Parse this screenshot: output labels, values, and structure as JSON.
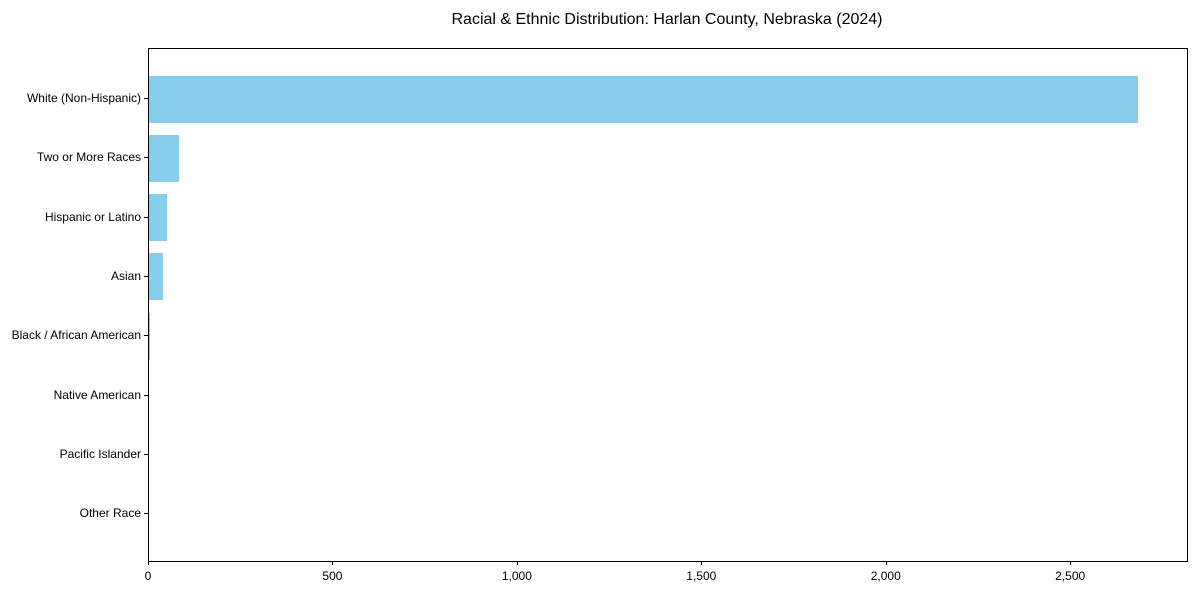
{
  "chart_data": {
    "type": "bar",
    "orientation": "horizontal",
    "title": "Racial & Ethnic Distribution: Harlan County, Nebraska (2024)",
    "categories": [
      "White (Non-Hispanic)",
      "Two or More Races",
      "Hispanic or Latino",
      "Asian",
      "Black / African American",
      "Native American",
      "Pacific Islander",
      "Other Race"
    ],
    "values": [
      2680,
      80,
      50,
      38,
      4,
      0,
      0,
      0
    ],
    "xlabel": "",
    "ylabel": "",
    "xlim": [
      0,
      2814
    ],
    "x_ticks": [
      0,
      500,
      1000,
      1500,
      2000,
      2500
    ],
    "x_tick_labels": [
      "0",
      "500",
      "1,000",
      "1,500",
      "2,000",
      "2,500"
    ],
    "bar_color": "#87CEEB",
    "text_color": "#000000",
    "grid": false,
    "legend": null
  }
}
